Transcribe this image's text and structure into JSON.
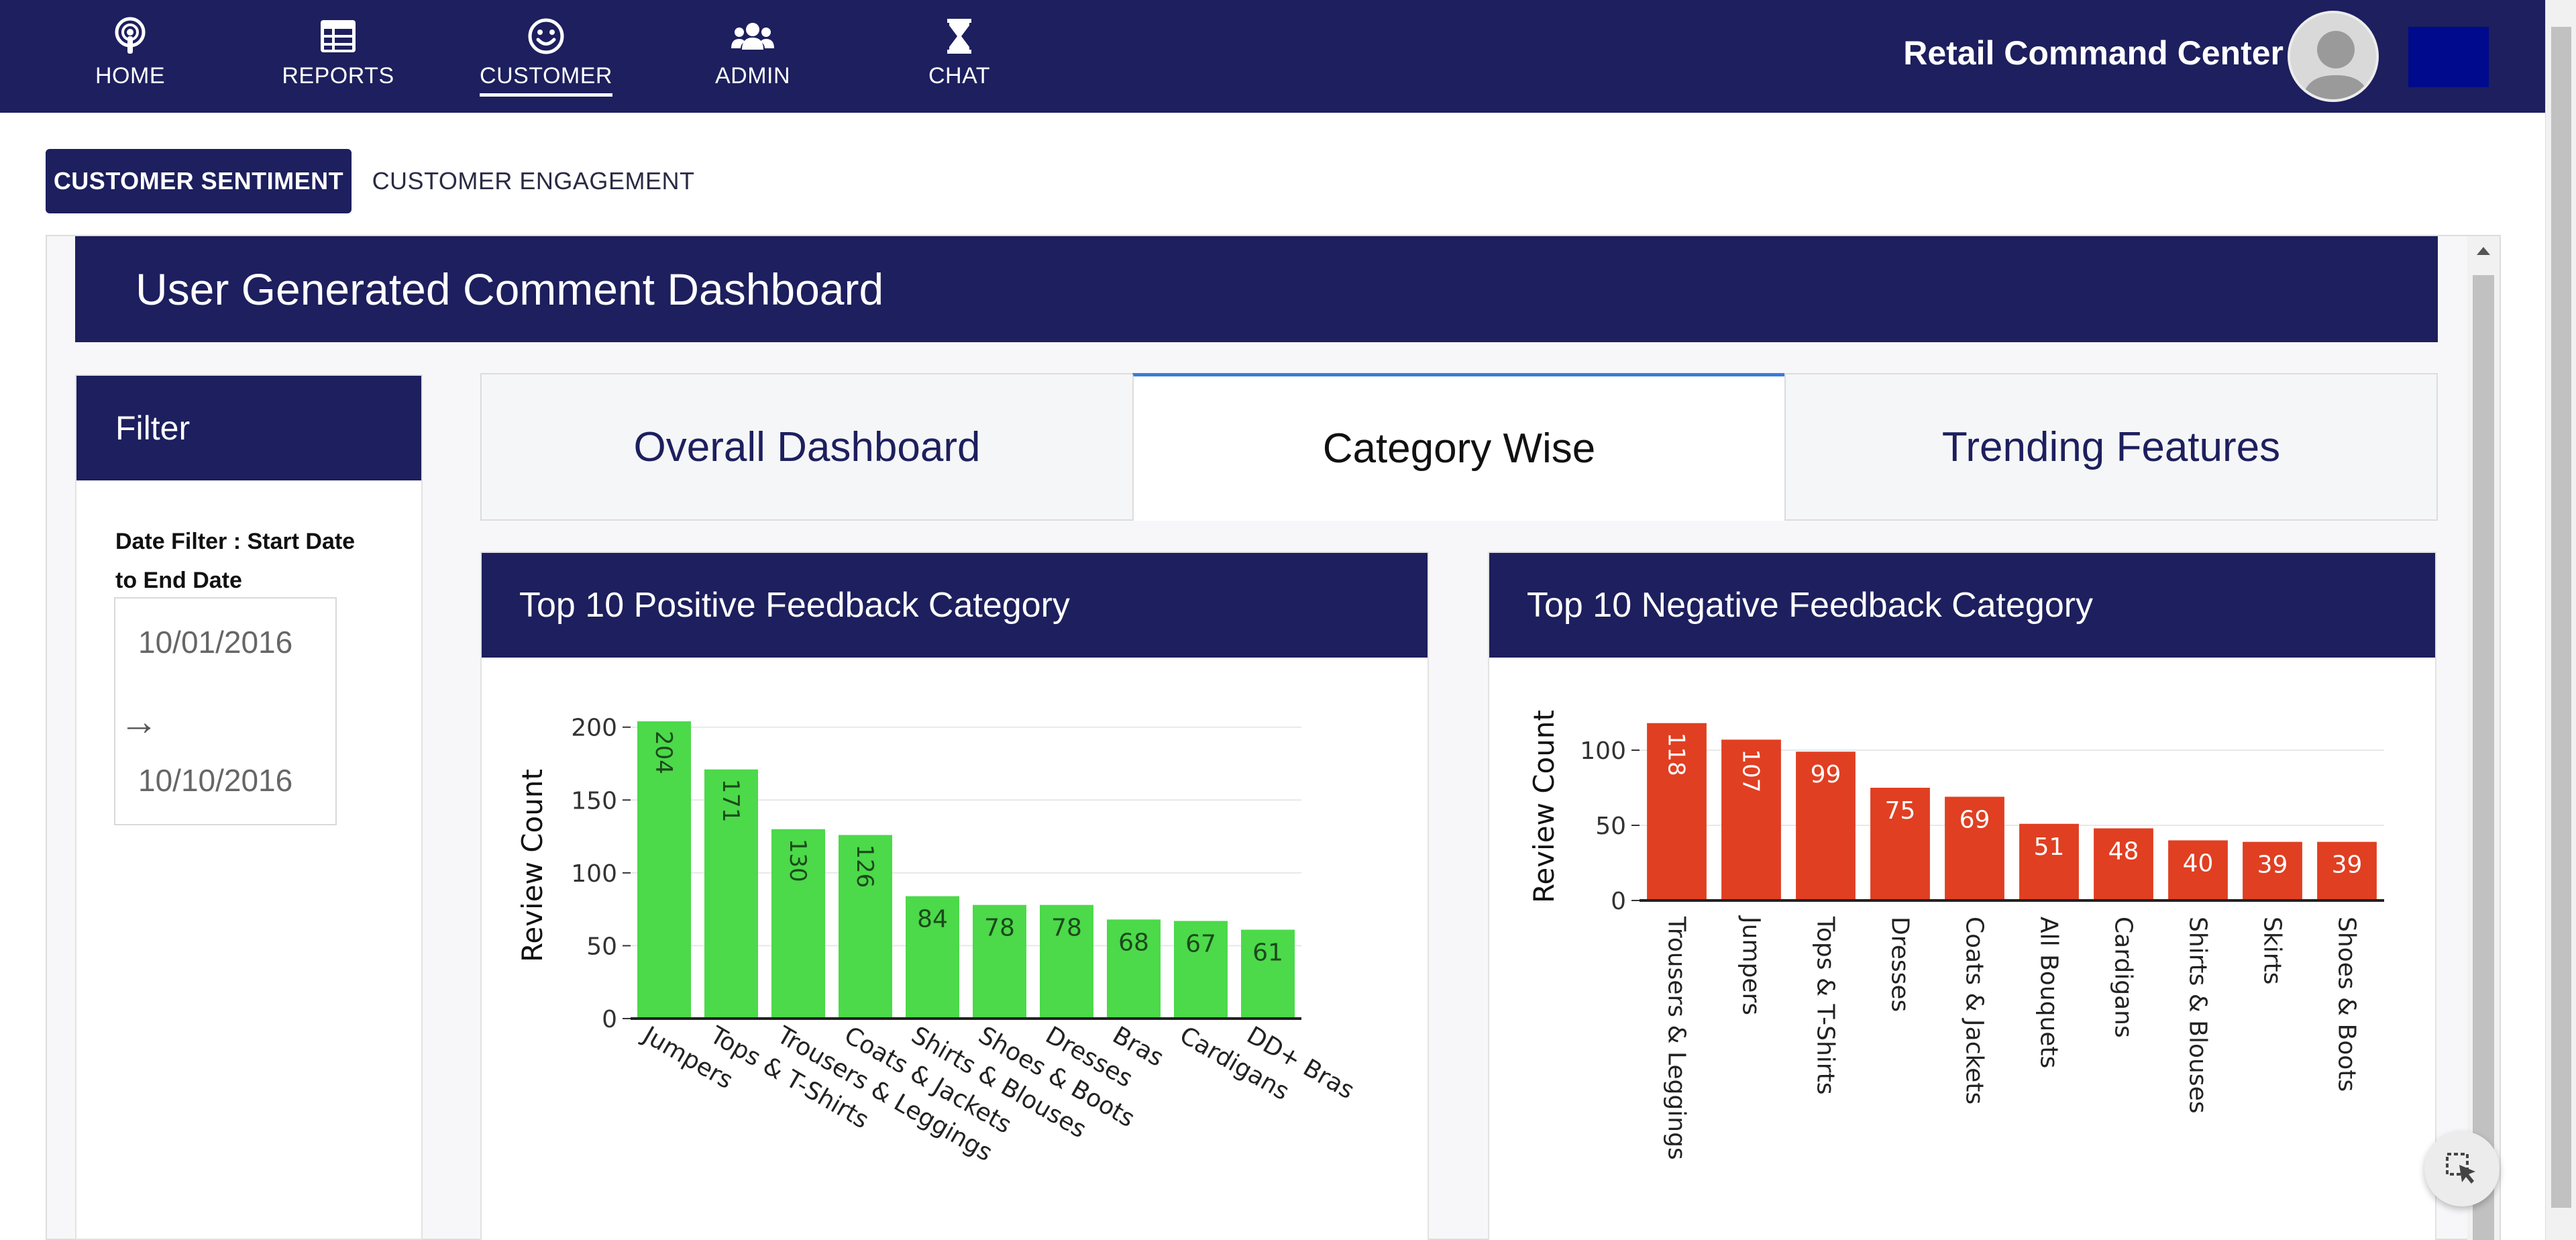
{
  "nav": {
    "items": [
      {
        "label": "HOME",
        "icon": "podcast-icon"
      },
      {
        "label": "REPORTS",
        "icon": "table-icon"
      },
      {
        "label": "CUSTOMER",
        "icon": "smile-icon"
      },
      {
        "label": "ADMIN",
        "icon": "users-icon"
      },
      {
        "label": "CHAT",
        "icon": "hourglass-icon"
      }
    ],
    "active": "CUSTOMER",
    "app_title": "Retail Command Center"
  },
  "subtabs": {
    "active": "CUSTOMER SENTIMENT",
    "inactive": "CUSTOMER ENGAGEMENT"
  },
  "dashboard": {
    "title": "User Generated Comment Dashboard"
  },
  "filter": {
    "heading": "Filter",
    "label": "Date Filter : Start Date to End Date",
    "start_date": "10/01/2016",
    "arrow": "→",
    "end_date": "10/10/2016"
  },
  "view_tabs": [
    {
      "label": "Overall Dashboard",
      "active": false
    },
    {
      "label": "Category Wise",
      "active": true
    },
    {
      "label": "Trending Features",
      "active": false
    }
  ],
  "colors": {
    "navy": "#1d1f5e",
    "positive": "#4cd94a",
    "negative": "#e03f22",
    "active_tab_accent": "#3a7bd5"
  },
  "chart_data": [
    {
      "type": "bar",
      "title": "Top 10 Positive Feedback Category",
      "ylabel": "Review Count",
      "xlabel": "",
      "ylim": [
        0,
        210
      ],
      "yticks": [
        0,
        50,
        100,
        150,
        200
      ],
      "categories": [
        "Jumpers",
        "Tops & T-Shirts",
        "Trousers & Leggings",
        "Coats & Jackets",
        "Shirts & Blouses",
        "Shoes & Boots",
        "Dresses",
        "Bras",
        "Cardigans",
        "DD+ Bras"
      ],
      "values": [
        204,
        171,
        130,
        126,
        84,
        78,
        78,
        68,
        67,
        61
      ],
      "grid": true,
      "color": "#4cd94a"
    },
    {
      "type": "bar",
      "title": "Top 10 Negative Feedback Category",
      "ylabel": "Review Count",
      "xlabel": "",
      "ylim": [
        0,
        125
      ],
      "yticks": [
        0,
        50,
        100
      ],
      "categories": [
        "Trousers & Leggings",
        "Jumpers",
        "Tops & T-Shirts",
        "Dresses",
        "Coats & Jackets",
        "All Bouquets",
        "Cardigans",
        "Shirts & Blouses",
        "Skirts",
        "Shoes & Boots"
      ],
      "values": [
        118,
        107,
        99,
        75,
        69,
        51,
        48,
        40,
        39,
        39
      ],
      "grid": true,
      "color": "#e03f22"
    }
  ]
}
